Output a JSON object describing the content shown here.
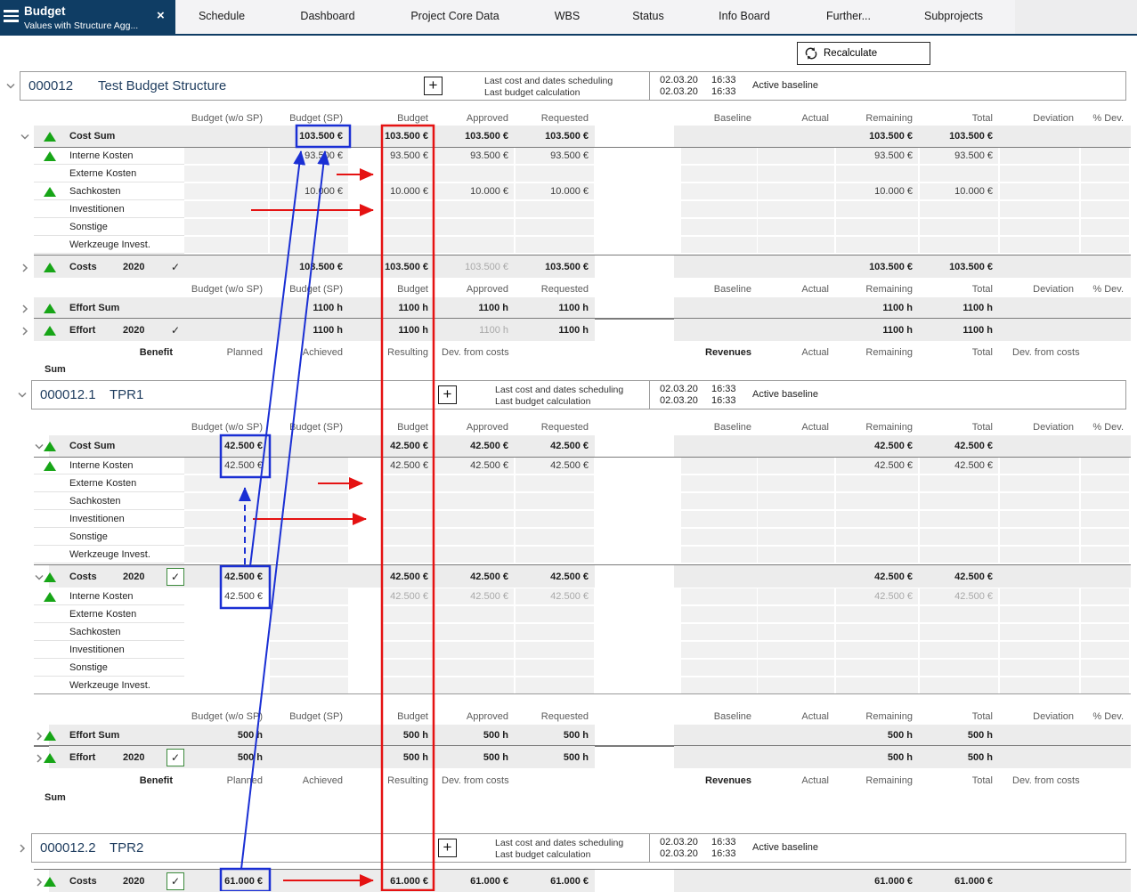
{
  "app": {
    "title": "Budget",
    "subtitle": "Values with Structure Agg...",
    "tabs": [
      "Schedule",
      "Dashboard",
      "Project Core Data",
      "WBS",
      "Status",
      "Info Board",
      "Further...",
      "Subprojects"
    ],
    "recalculate": "Recalculate"
  },
  "icons": {
    "close": "×",
    "check": "✓",
    "plus": "+"
  },
  "colors": {
    "titlebar": "#0f3d64",
    "annotation_red": "#e51212",
    "annotation_blue": "#1a2fd4",
    "triangle_green": "#17a517",
    "checkbox_green": "#3c8a3c"
  },
  "headers": {
    "money": [
      "Budget (w/o SP)",
      "Budget (SP)",
      "Budget",
      "Approved",
      "Requested",
      "Baseline",
      "Actual",
      "Remaining",
      "Total",
      "Deviation",
      "% Dev."
    ],
    "benefit_left": [
      "Benefit",
      "Planned",
      "Achieved",
      "Resulting",
      "Dev. from costs"
    ],
    "benefit_right": [
      "Revenues",
      "Actual",
      "Remaining",
      "Total",
      "Dev. from costs"
    ],
    "sum_label": "Sum"
  },
  "info_panel": {
    "line1": "Last cost and dates scheduling",
    "line2": "Last budget calculation",
    "date1": "02.03.20",
    "time1": "16:33",
    "date2": "02.03.20",
    "time2": "16:33",
    "baseline": "Active baseline"
  },
  "sections": [
    {
      "id": "000012",
      "name": "Test Budget Structure",
      "chevron": "down",
      "rows": [
        {
          "t": "heads"
        },
        {
          "t": "row",
          "style": "sum",
          "chev": "down",
          "tri": true,
          "label": "Cost Sum",
          "cells": {
            "sp": "103.500 €",
            "bud": "103.500 €",
            "app": "103.500 €",
            "req": "103.500 €",
            "rem": "103.500 €",
            "tot": "103.500 €"
          }
        },
        {
          "t": "row",
          "style": "detail",
          "tri": true,
          "label": "Interne Kosten",
          "cells": {
            "sp": "93.500 €",
            "bud": "93.500 €",
            "app": "93.500 €",
            "req": "93.500 €",
            "rem": "93.500 €",
            "tot": "93.500 €"
          }
        },
        {
          "t": "row",
          "style": "detail",
          "label": "Externe Kosten",
          "cells": {}
        },
        {
          "t": "row",
          "style": "detail",
          "tri": true,
          "label": "Sachkosten",
          "cells": {
            "sp": "10.000 €",
            "bud": "10.000 €",
            "app": "10.000 €",
            "req": "10.000 €",
            "rem": "10.000 €",
            "tot": "10.000 €"
          }
        },
        {
          "t": "row",
          "style": "detail",
          "label": "Investitionen",
          "cells": {}
        },
        {
          "t": "row",
          "style": "detail",
          "label": "Sonstige",
          "cells": {}
        },
        {
          "t": "row",
          "style": "detail",
          "label": "Werkzeuge Invest.",
          "cells": {}
        },
        {
          "t": "row",
          "style": "year",
          "chev": "right",
          "tri": true,
          "label": "Costs",
          "year": "2020",
          "check": "plain",
          "muted": [
            "app"
          ],
          "cells": {
            "sp": "103.500 €",
            "bud": "103.500 €",
            "app": "103.500 €",
            "req": "103.500 €",
            "rem": "103.500 €",
            "tot": "103.500 €"
          }
        },
        {
          "t": "heads"
        },
        {
          "t": "row",
          "style": "sum",
          "chev": "right",
          "tri": true,
          "label": "Effort Sum",
          "cells": {
            "sp": "1100 h",
            "bud": "1100 h",
            "app": "1100 h",
            "req": "1100 h",
            "rem": "1100 h",
            "tot": "1100 h"
          }
        },
        {
          "t": "row",
          "style": "year",
          "chev": "right",
          "tri": true,
          "label": "Effort",
          "year": "2020",
          "check": "plain",
          "muted": [
            "app"
          ],
          "cells": {
            "sp": "1100 h",
            "bud": "1100 h",
            "app": "1100 h",
            "req": "1100 h",
            "rem": "1100 h",
            "tot": "1100 h"
          }
        },
        {
          "t": "benefit"
        },
        {
          "t": "sumlabel"
        }
      ]
    },
    {
      "id": "000012.1",
      "name": "TPR1",
      "chevron": "down",
      "rows": [
        {
          "t": "heads"
        },
        {
          "t": "row",
          "style": "sum",
          "chev": "down",
          "tri": true,
          "label": "Cost Sum",
          "cells": {
            "wsp": "42.500 €",
            "bud": "42.500 €",
            "app": "42.500 €",
            "req": "42.500 €",
            "rem": "42.500 €",
            "tot": "42.500 €"
          }
        },
        {
          "t": "row",
          "style": "detail",
          "tri": true,
          "label": "Interne Kosten",
          "cells": {
            "wsp": "42.500 €",
            "bud": "42.500 €",
            "app": "42.500 €",
            "req": "42.500 €",
            "rem": "42.500 €",
            "tot": "42.500 €"
          }
        },
        {
          "t": "row",
          "style": "detail",
          "label": "Externe Kosten",
          "cells": {}
        },
        {
          "t": "row",
          "style": "detail",
          "label": "Sachkosten",
          "cells": {}
        },
        {
          "t": "row",
          "style": "detail",
          "label": "Investitionen",
          "cells": {}
        },
        {
          "t": "row",
          "style": "detail",
          "label": "Sonstige",
          "cells": {}
        },
        {
          "t": "row",
          "style": "detail",
          "label": "Werkzeuge Invest.",
          "cells": {}
        },
        {
          "t": "row",
          "style": "year",
          "chev": "down",
          "tri": true,
          "label": "Costs",
          "year": "2020",
          "check": "green",
          "cells": {
            "wsp": "42.500 €",
            "bud": "42.500 €",
            "app": "42.500 €",
            "req": "42.500 €",
            "rem": "42.500 €",
            "tot": "42.500 €"
          }
        },
        {
          "t": "row",
          "style": "detail",
          "tri": true,
          "label": "Interne Kosten",
          "whiteWsp": true,
          "muted": [
            "bud",
            "app",
            "req",
            "rem",
            "tot"
          ],
          "cells": {
            "wsp": "42.500 €",
            "bud": "42.500 €",
            "app": "42.500 €",
            "req": "42.500 €",
            "rem": "42.500 €",
            "tot": "42.500 €"
          }
        },
        {
          "t": "row",
          "style": "detail",
          "label": "Externe Kosten",
          "whiteWsp": true,
          "cells": {}
        },
        {
          "t": "row",
          "style": "detail",
          "label": "Sachkosten",
          "whiteWsp": true,
          "cells": {}
        },
        {
          "t": "row",
          "style": "detail",
          "label": "Investitionen",
          "whiteWsp": true,
          "cells": {}
        },
        {
          "t": "row",
          "style": "detail",
          "label": "Sonstige",
          "whiteWsp": true,
          "cells": {}
        },
        {
          "t": "row",
          "style": "detail",
          "label": "Werkzeuge Invest.",
          "whiteWsp": true,
          "endline": true,
          "cells": {}
        },
        {
          "t": "heads"
        },
        {
          "t": "row",
          "style": "sum",
          "chev": "right",
          "tri": true,
          "label": "Effort Sum",
          "cells": {
            "wsp": "500 h",
            "bud": "500 h",
            "app": "500 h",
            "req": "500 h",
            "rem": "500 h",
            "tot": "500 h"
          }
        },
        {
          "t": "row",
          "style": "year",
          "chev": "right",
          "tri": true,
          "label": "Effort",
          "year": "2020",
          "check": "green",
          "cells": {
            "wsp": "500 h",
            "bud": "500 h",
            "app": "500 h",
            "req": "500 h",
            "rem": "500 h",
            "tot": "500 h"
          }
        },
        {
          "t": "benefit"
        },
        {
          "t": "sumlabel"
        }
      ]
    },
    {
      "id": "000012.2",
      "name": "TPR2",
      "chevron": "right",
      "rows": [
        {
          "t": "row",
          "style": "year",
          "chev": "right",
          "tri": true,
          "label": "Costs",
          "year": "2020",
          "check": "green",
          "cells": {
            "wsp": "61.000 €",
            "bud": "61.000 €",
            "app": "61.000 €",
            "req": "61.000 €",
            "rem": "61.000 €",
            "tot": "61.000 €"
          }
        }
      ]
    }
  ]
}
